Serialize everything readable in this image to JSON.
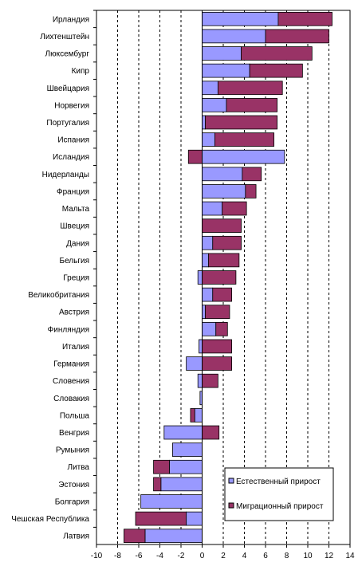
{
  "chart_data": {
    "type": "bar",
    "orientation": "horizontal",
    "stacked": true,
    "categories": [
      "Ирландия",
      "Лихтенштейн",
      "Люксембург",
      "Кипр",
      "Швейцария",
      "Норвегия",
      "Португалия",
      "Испания",
      "Исландия",
      "Нидерланды",
      "Франция",
      "Мальта",
      "Швеция",
      "Дания",
      "Бельгия",
      "Греция",
      "Великобритания",
      "Австрия",
      "Финляндия",
      "Италия",
      "Германия",
      "Словения",
      "Словакия",
      "Польша",
      "Венгрия",
      "Румыния",
      "Литва",
      "Эстония",
      "Болгария",
      "Чешская Республика",
      "Латвия"
    ],
    "series": [
      {
        "name": "Естественный прирост",
        "color": "#9999ff",
        "values": [
          7.2,
          6.0,
          3.7,
          4.5,
          1.5,
          2.3,
          0.3,
          1.2,
          7.8,
          3.8,
          4.1,
          1.9,
          0,
          1.0,
          0.6,
          -0.4,
          1.0,
          0.3,
          1.3,
          -0.3,
          -1.5,
          -0.4,
          -0.2,
          -0.7,
          -3.6,
          -2.8,
          -3.1,
          -3.9,
          -5.8,
          -1.5,
          -5.4
        ]
      },
      {
        "name": "Миграционный прирост",
        "color": "#993366",
        "values": [
          5.1,
          6.0,
          6.7,
          5.0,
          6.1,
          4.8,
          6.8,
          5.6,
          -1.3,
          1.8,
          1.0,
          2.3,
          3.7,
          2.7,
          2.9,
          3.2,
          1.8,
          2.3,
          1.1,
          2.8,
          2.8,
          1.5,
          0,
          -0.4,
          1.6,
          0,
          -1.5,
          -0.7,
          0,
          -4.8,
          -2.0
        ]
      }
    ],
    "xlim": [
      -10,
      14
    ],
    "xticks": [
      -10,
      -8,
      -6,
      -4,
      -2,
      0,
      2,
      4,
      6,
      8,
      10,
      12,
      14
    ],
    "grid": "vertical-dashed",
    "legend": "bottom-right",
    "title": "",
    "xlabel": "",
    "ylabel": ""
  }
}
